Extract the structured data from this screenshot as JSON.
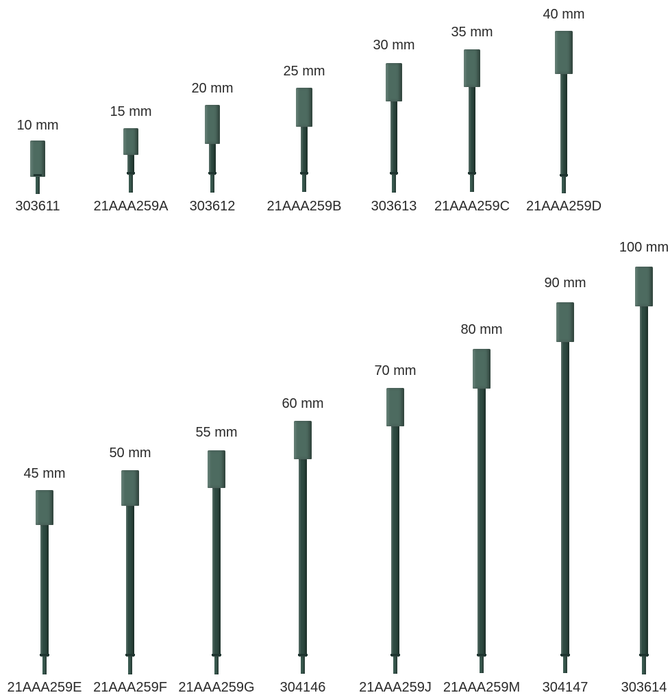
{
  "colors": {
    "tip": "#4d6b60",
    "rod": "#2e4a41",
    "pin": "#3a5a50",
    "collar": "#1f3530",
    "text": "#2a2a2a"
  },
  "rows": [
    {
      "items": [
        {
          "length": "10 mm",
          "code": "303611"
        },
        {
          "length": "15 mm",
          "code": "21AAA259A"
        },
        {
          "length": "20 mm",
          "code": "303612"
        },
        {
          "length": "25 mm",
          "code": "21AAA259B"
        },
        {
          "length": "30 mm",
          "code": "303613"
        },
        {
          "length": "35 mm",
          "code": "21AAA259C"
        },
        {
          "length": "40 mm",
          "code": "21AAA259D"
        }
      ]
    },
    {
      "items": [
        {
          "length": "45 mm",
          "code": "21AAA259E"
        },
        {
          "length": "50 mm",
          "code": "21AAA259F"
        },
        {
          "length": "55 mm",
          "code": "21AAA259G"
        },
        {
          "length": "60 mm",
          "code": "304146"
        },
        {
          "length": "70 mm",
          "code": "21AAA259J"
        },
        {
          "length": "80 mm",
          "code": "21AAA259M"
        },
        {
          "length": "90 mm",
          "code": "304147"
        },
        {
          "length": "100 mm",
          "code": "303614"
        }
      ]
    }
  ]
}
